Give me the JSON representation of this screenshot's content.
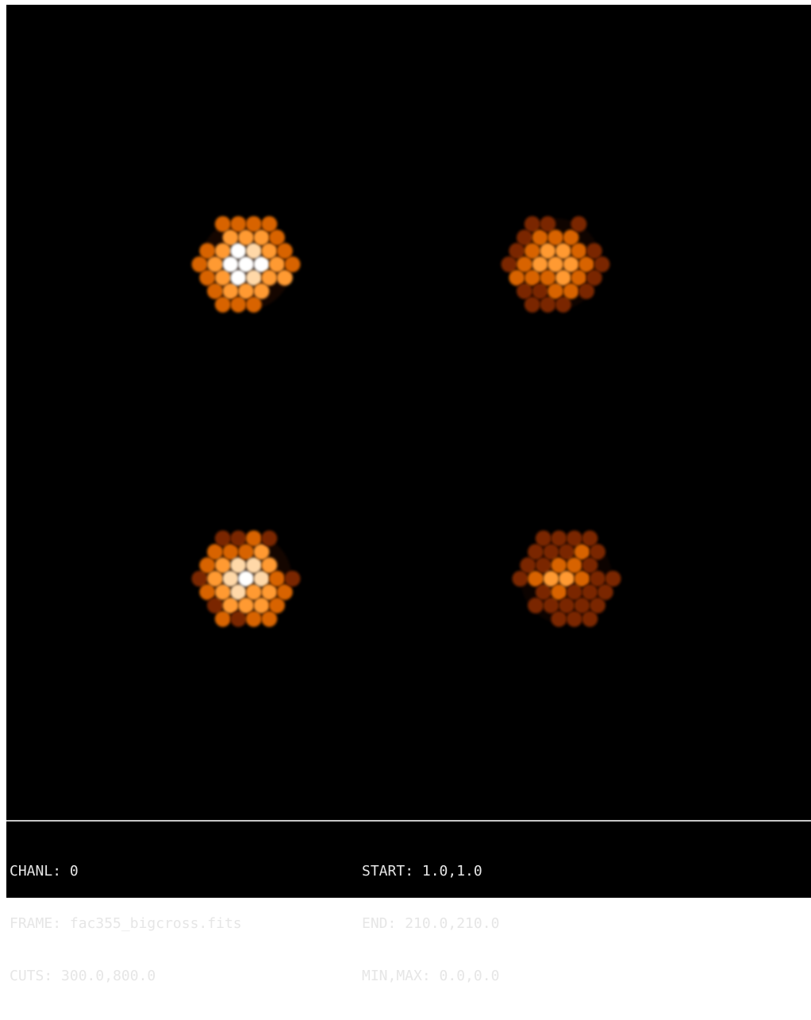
{
  "status": {
    "left": [
      {
        "key": "CHANL",
        "sep": ": ",
        "value": "0"
      },
      {
        "key": "FRAME",
        "sep": ": ",
        "value": "fac355_bigcross.fits"
      },
      {
        "key": "CUTS",
        "sep": ": ",
        "value": "300.0,800.0"
      }
    ],
    "right": [
      {
        "key": "START",
        "sep": ": ",
        "value": "1.0,1.0"
      },
      {
        "key": "END",
        "sep": ": ",
        "value": "210.0,210.0"
      },
      {
        "key": "MIN,MAX",
        "sep": ": ",
        "value": "0.0,0.0"
      }
    ]
  },
  "colors": {
    "background": "#000000",
    "text": "#e6e6e6",
    "divider": "#c8c8c8",
    "spot_hot": "#ffffff",
    "spot_warm": "#ffd8a8",
    "spot_mid": "#ff9a30",
    "spot_cool": "#d86400",
    "spot_dim": "#7a2800"
  },
  "image": {
    "colormap": "heat",
    "spots": [
      {
        "name": "spot-top-left",
        "brightness": 0.95
      },
      {
        "name": "spot-top-right",
        "brightness": 0.7
      },
      {
        "name": "spot-bottom-left",
        "brightness": 0.9
      },
      {
        "name": "spot-bottom-right",
        "brightness": 0.55
      }
    ]
  }
}
